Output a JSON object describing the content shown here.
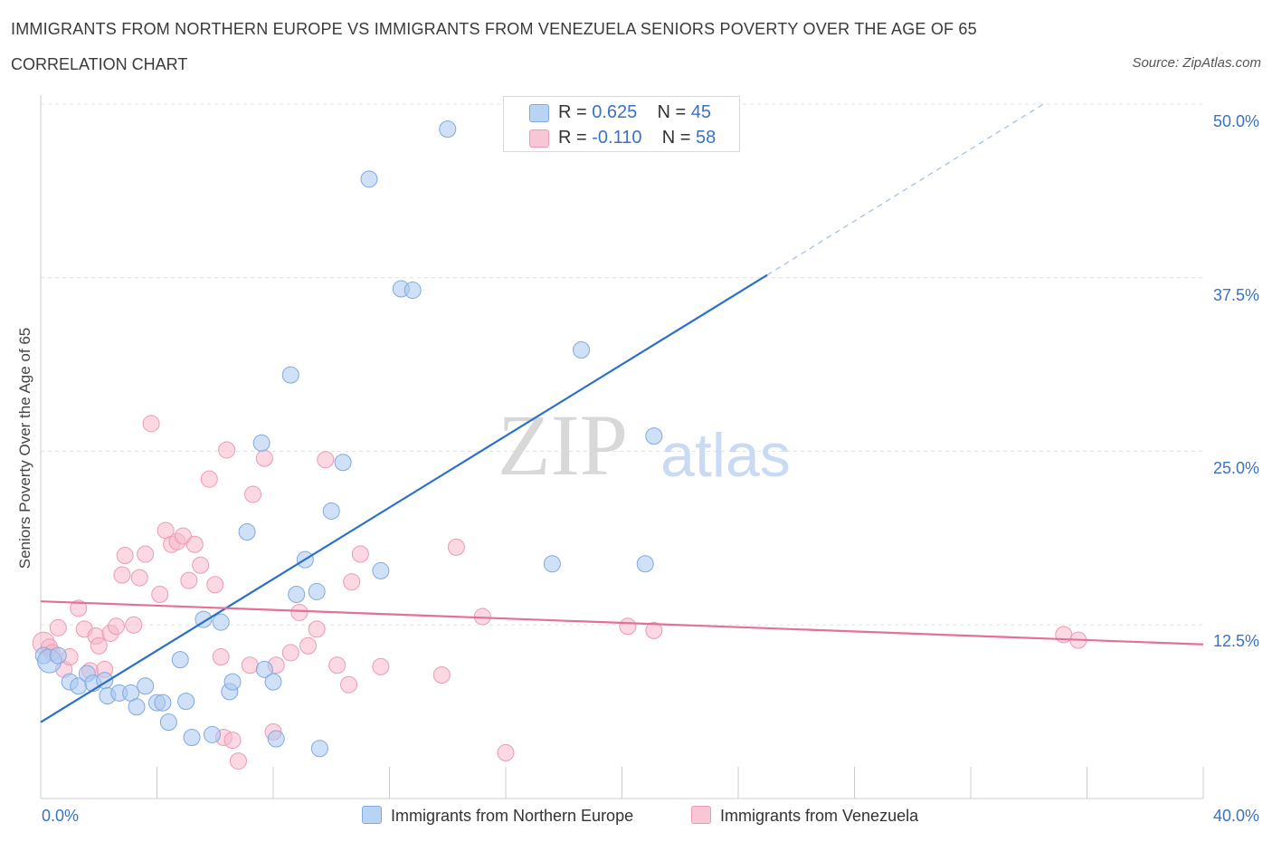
{
  "header": {
    "title": "IMMIGRANTS FROM NORTHERN EUROPE VS IMMIGRANTS FROM VENEZUELA SENIORS POVERTY OVER THE AGE OF 65",
    "subtitle": "CORRELATION CHART",
    "source": "Source: ZipAtlas.com"
  },
  "watermark": {
    "zip": "ZIP",
    "atlas": "atlas"
  },
  "legend_top": {
    "rows": [
      {
        "r_label": "R = ",
        "r_value": "0.625",
        "n_label": "N = ",
        "n_value": "45"
      },
      {
        "r_label": "R = ",
        "r_value": "-0.110",
        "n_label": "N = ",
        "n_value": "58"
      }
    ]
  },
  "legend_bottom": {
    "items": [
      {
        "label": "Immigrants from Northern Europe"
      },
      {
        "label": "Immigrants from Venezuela"
      }
    ]
  },
  "chart_data": {
    "type": "scatter",
    "title": "IMMIGRANTS FROM NORTHERN EUROPE VS IMMIGRANTS FROM VENEZUELA SENIORS POVERTY OVER THE AGE OF 65",
    "subtitle": "CORRELATION CHART",
    "xlabel": "",
    "ylabel": "Seniors Poverty Over the Age of 65",
    "xlim": [
      0,
      40
    ],
    "ylim": [
      0,
      50
    ],
    "x_tick_labels": [
      "0.0%",
      "40.0%"
    ],
    "y_tick_labels": [
      "12.5%",
      "25.0%",
      "37.5%",
      "50.0%"
    ],
    "y_ticks": [
      12.5,
      25.0,
      37.5,
      50.0
    ],
    "grid": true,
    "colors": {
      "northern_europe": "#a9c8f0",
      "northern_europe_line": "#2a6fcc",
      "venezuela": "#f7b8cb",
      "venezuela_line": "#e4709a"
    },
    "series": [
      {
        "name": "Immigrants from Northern Europe",
        "r": 0.625,
        "n": 45,
        "trend": {
          "x": [
            0,
            25
          ],
          "y": [
            5.5,
            37.7
          ],
          "dashed_x": [
            25,
            34.5
          ],
          "dashed_y": [
            37.7,
            50.0
          ]
        },
        "points": [
          [
            0.1,
            10.3
          ],
          [
            0.3,
            9.9
          ],
          [
            0.6,
            10.3
          ],
          [
            1.0,
            8.4
          ],
          [
            1.3,
            8.1
          ],
          [
            1.6,
            9.0
          ],
          [
            1.8,
            8.3
          ],
          [
            2.2,
            8.5
          ],
          [
            2.3,
            7.4
          ],
          [
            2.7,
            7.6
          ],
          [
            3.1,
            7.6
          ],
          [
            3.3,
            6.6
          ],
          [
            3.6,
            8.1
          ],
          [
            4.0,
            6.9
          ],
          [
            4.2,
            6.9
          ],
          [
            4.4,
            5.5
          ],
          [
            4.8,
            10.0
          ],
          [
            5.0,
            7.0
          ],
          [
            5.2,
            4.4
          ],
          [
            5.6,
            12.9
          ],
          [
            5.9,
            4.6
          ],
          [
            6.2,
            12.7
          ],
          [
            6.5,
            7.7
          ],
          [
            6.6,
            8.4
          ],
          [
            7.1,
            19.2
          ],
          [
            7.7,
            9.3
          ],
          [
            7.6,
            25.6
          ],
          [
            8.0,
            8.4
          ],
          [
            8.1,
            4.3
          ],
          [
            8.6,
            30.5
          ],
          [
            8.8,
            14.7
          ],
          [
            9.1,
            17.2
          ],
          [
            9.5,
            14.9
          ],
          [
            9.6,
            3.6
          ],
          [
            10.0,
            20.7
          ],
          [
            10.4,
            24.2
          ],
          [
            11.3,
            44.6
          ],
          [
            11.7,
            16.4
          ],
          [
            12.4,
            36.7
          ],
          [
            12.8,
            36.6
          ],
          [
            14.0,
            48.2
          ],
          [
            17.6,
            16.9
          ],
          [
            18.6,
            32.3
          ],
          [
            20.8,
            16.9
          ],
          [
            21.1,
            26.1
          ]
        ]
      },
      {
        "name": "Immigrants from Venezuela",
        "r": -0.11,
        "n": 58,
        "trend": {
          "x": [
            0,
            40
          ],
          "y": [
            14.2,
            11.1
          ]
        },
        "points": [
          [
            0.1,
            11.2
          ],
          [
            0.3,
            10.9
          ],
          [
            0.4,
            10.5
          ],
          [
            0.6,
            12.3
          ],
          [
            0.8,
            9.3
          ],
          [
            1.0,
            10.2
          ],
          [
            1.3,
            13.7
          ],
          [
            1.5,
            12.2
          ],
          [
            1.7,
            9.2
          ],
          [
            1.9,
            11.7
          ],
          [
            2.0,
            11.0
          ],
          [
            2.2,
            9.3
          ],
          [
            2.4,
            11.9
          ],
          [
            2.6,
            12.4
          ],
          [
            2.8,
            16.1
          ],
          [
            2.9,
            17.5
          ],
          [
            3.2,
            12.5
          ],
          [
            3.4,
            15.9
          ],
          [
            3.6,
            17.6
          ],
          [
            3.8,
            27.0
          ],
          [
            4.1,
            14.7
          ],
          [
            4.3,
            19.3
          ],
          [
            4.5,
            18.3
          ],
          [
            4.7,
            18.5
          ],
          [
            4.9,
            18.9
          ],
          [
            5.1,
            15.7
          ],
          [
            5.3,
            18.3
          ],
          [
            5.5,
            16.8
          ],
          [
            5.8,
            23.0
          ],
          [
            6.0,
            15.4
          ],
          [
            6.2,
            10.2
          ],
          [
            6.3,
            4.4
          ],
          [
            6.4,
            25.1
          ],
          [
            6.6,
            4.2
          ],
          [
            6.8,
            2.7
          ],
          [
            7.2,
            9.6
          ],
          [
            7.3,
            21.9
          ],
          [
            7.7,
            24.5
          ],
          [
            8.0,
            4.8
          ],
          [
            8.1,
            9.6
          ],
          [
            8.6,
            10.5
          ],
          [
            8.9,
            13.4
          ],
          [
            9.2,
            11.0
          ],
          [
            9.5,
            12.2
          ],
          [
            9.8,
            24.4
          ],
          [
            10.2,
            9.6
          ],
          [
            10.6,
            8.2
          ],
          [
            10.7,
            15.6
          ],
          [
            11.0,
            17.6
          ],
          [
            11.7,
            9.5
          ],
          [
            13.8,
            8.9
          ],
          [
            14.3,
            18.1
          ],
          [
            15.2,
            13.1
          ],
          [
            16.0,
            3.3
          ],
          [
            20.2,
            12.4
          ],
          [
            21.1,
            12.1
          ],
          [
            35.2,
            11.8
          ],
          [
            35.7,
            11.4
          ]
        ]
      }
    ]
  }
}
